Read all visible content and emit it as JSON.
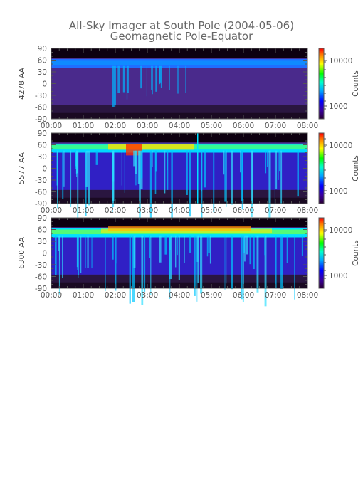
{
  "figure": {
    "title_line1": "All-Sky Imager at South Pole (2004-05-06)",
    "title_line2": "Geomagnetic Pole-Equator"
  },
  "chart_data": [
    {
      "type": "heatmap",
      "ylabel": "4278 AA",
      "x_ticks": [
        "00:00",
        "01:00",
        "02:00",
        "03:00",
        "04:00",
        "05:00",
        "06:00",
        "07:00",
        "08:00"
      ],
      "y_ticks": [
        "90",
        "60",
        "30",
        "0",
        "-30",
        "-60",
        "-90"
      ],
      "xlim": [
        "00:00",
        "08:00"
      ],
      "ylim": [
        -90,
        90
      ],
      "colorbar": {
        "label": "Counts",
        "ticks": [
          "10000",
          "1000"
        ],
        "scale": "log",
        "colormap": "rainbow"
      }
    },
    {
      "type": "heatmap",
      "ylabel": "5577 AA",
      "x_ticks": [
        "00:00",
        "01:00",
        "02:00",
        "03:00",
        "04:00",
        "05:00",
        "06:00",
        "07:00",
        "08:00"
      ],
      "y_ticks": [
        "90",
        "60",
        "30",
        "0",
        "-30",
        "-60",
        "-90"
      ],
      "xlim": [
        "00:00",
        "08:00"
      ],
      "ylim": [
        -90,
        90
      ],
      "colorbar": {
        "label": "Counts",
        "ticks": [
          "10000",
          "1000"
        ],
        "scale": "log",
        "colormap": "rainbow"
      }
    },
    {
      "type": "heatmap",
      "ylabel": "6300 AA",
      "x_ticks": [
        "00:00",
        "01:00",
        "02:00",
        "03:00",
        "04:00",
        "05:00",
        "06:00",
        "07:00",
        "08:00"
      ],
      "y_ticks": [
        "90",
        "60",
        "30",
        "0",
        "-30",
        "-60",
        "-90"
      ],
      "xlim": [
        "00:00",
        "08:00"
      ],
      "ylim": [
        -90,
        90
      ],
      "colorbar": {
        "label": "Counts",
        "ticks": [
          "10000",
          "1000"
        ],
        "scale": "log",
        "colormap": "rainbow"
      }
    }
  ]
}
